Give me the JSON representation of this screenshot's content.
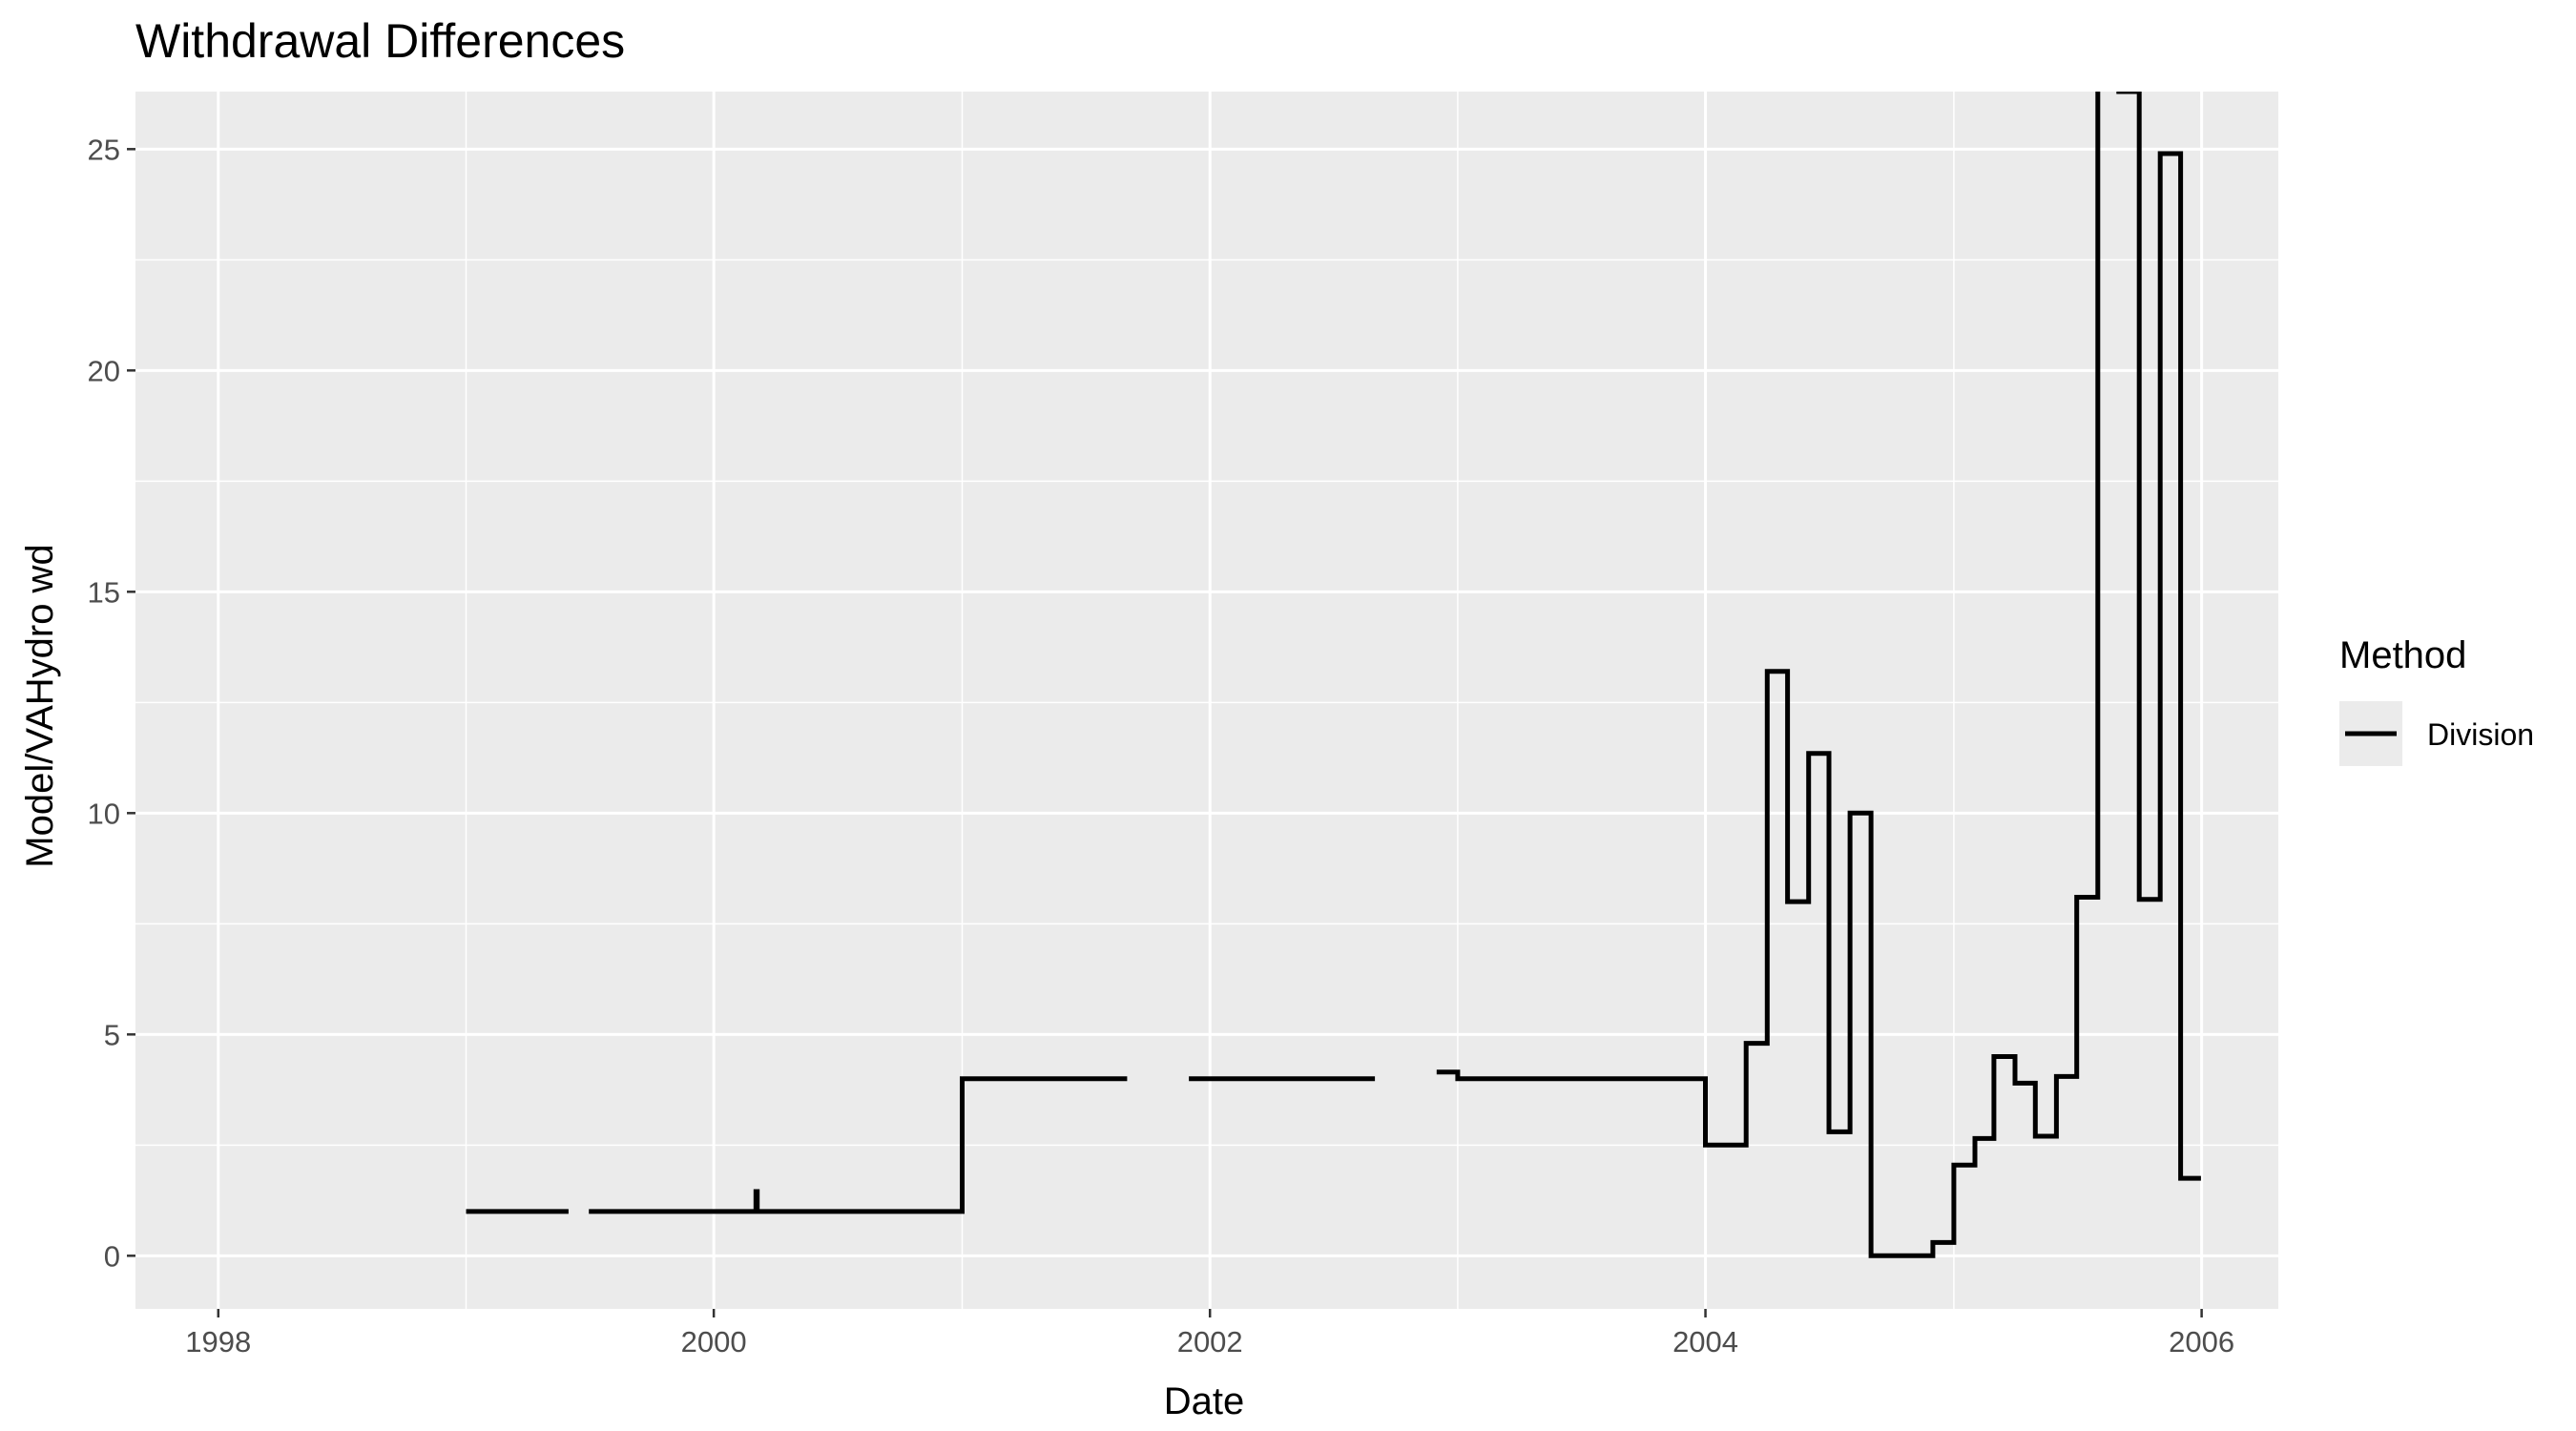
{
  "chart_data": {
    "type": "line",
    "title": "Withdrawal Differences",
    "xlabel": "Date",
    "ylabel": "Model/VAHydro wd",
    "xlim": [
      "1997-09-01",
      "2006-04-24"
    ],
    "ylim": [
      -1.2,
      26.3
    ],
    "x_ticks": [
      "1998-01-01",
      "2000-01-01",
      "2002-01-01",
      "2004-01-01",
      "2006-01-01"
    ],
    "x_tick_labels": [
      "1998",
      "2000",
      "2002",
      "2004",
      "2006"
    ],
    "x_minor_ticks": [
      "1999-01-01",
      "2001-01-01",
      "2003-01-01",
      "2005-01-01"
    ],
    "y_ticks": [
      0,
      5,
      10,
      15,
      20,
      25
    ],
    "y_minor_ticks": [
      2.5,
      7.5,
      12.5,
      17.5,
      22.5
    ],
    "grid": true,
    "legend": {
      "title": "Method",
      "position": "right",
      "entries": [
        "Division"
      ]
    },
    "series": [
      {
        "name": "Division",
        "color": "#000000",
        "step": "hv",
        "segments": [
          [
            [
              "1999-01-01",
              1.0
            ],
            [
              "1999-06-01",
              1.0
            ]
          ],
          [
            [
              "1999-07-01",
              1.0
            ],
            [
              "2000-03-01",
              1.0
            ],
            [
              "2000-03-03",
              1.45
            ],
            [
              "2000-03-05",
              1.0
            ],
            [
              "2001-01-01",
              4.0
            ],
            [
              "2001-09-01",
              4.0
            ]
          ],
          [
            [
              "2001-12-01",
              4.0
            ],
            [
              "2002-09-01",
              4.0
            ]
          ],
          [
            [
              "2002-12-01",
              4.15
            ],
            [
              "2003-01-01",
              4.0
            ],
            [
              "2004-01-01",
              2.5
            ],
            [
              "2004-03-01",
              4.8
            ],
            [
              "2004-04-01",
              13.2
            ],
            [
              "2004-05-01",
              8.0
            ],
            [
              "2004-06-01",
              11.35
            ],
            [
              "2004-07-01",
              2.8
            ],
            [
              "2004-08-01",
              10.0
            ],
            [
              "2004-09-01",
              0.0
            ],
            [
              "2004-12-01",
              0.3
            ],
            [
              "2005-01-01",
              2.05
            ],
            [
              "2005-02-01",
              2.65
            ],
            [
              "2005-03-01",
              4.5
            ],
            [
              "2005-04-01",
              3.9
            ],
            [
              "2005-05-01",
              2.7
            ],
            [
              "2005-06-01",
              4.05
            ],
            [
              "2005-07-01",
              8.1
            ],
            [
              "2005-08-01",
              28.0
            ],
            [
              "2005-09-01",
              26.3
            ],
            [
              "2005-10-01",
              8.05
            ],
            [
              "2005-11-01",
              24.9
            ],
            [
              "2005-12-01",
              1.75
            ],
            [
              "2005-12-31",
              1.75
            ]
          ]
        ]
      }
    ]
  }
}
